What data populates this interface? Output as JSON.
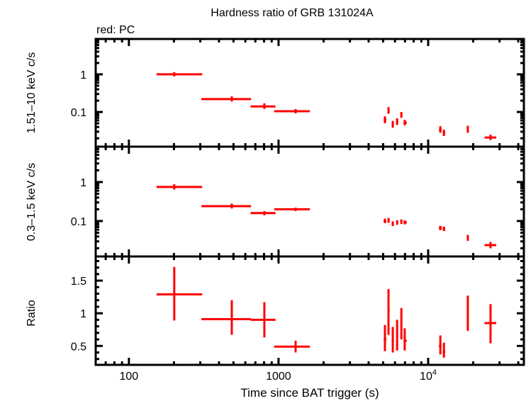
{
  "chart_data": {
    "type": "scatter",
    "title": "Hardness ratio of GRB 131024A",
    "legend_note": "red: PC",
    "xlabel": "Time since BAT trigger (s)",
    "xscale": "log",
    "xlim": [
      60,
      43600
    ],
    "xticks": [
      {
        "value": 100,
        "label": "100"
      },
      {
        "value": 1000,
        "label": "1000"
      },
      {
        "value": 10000,
        "label": "10",
        "sup": "4"
      }
    ],
    "series_color": "#ff0000",
    "series_name": "PC",
    "x": [
      201,
      487,
      804,
      1300,
      5140,
      5430,
      5800,
      6200,
      6620,
      6970,
      12060,
      12740,
      18400,
      26100
    ],
    "x_lo": [
      153,
      305,
      650,
      935,
      5040,
      5340,
      5700,
      6100,
      6520,
      6850,
      11800,
      12500,
      18200,
      23800
    ],
    "x_hi": [
      309,
      655,
      955,
      1620,
      5250,
      5530,
      5900,
      6300,
      6720,
      7200,
      12300,
      13000,
      18600,
      28500
    ],
    "panels": [
      {
        "name": "hard",
        "ylabel": "1.51–10 keV c/s",
        "yscale": "log",
        "ylim": [
          0.012,
          8.7
        ],
        "yticks": [
          {
            "value": 1,
            "label": "1"
          },
          {
            "value": 0.1,
            "label": "0.1"
          }
        ],
        "y": [
          1.0,
          0.22,
          0.14,
          0.105,
          0.062,
          0.109,
          0.046,
          0.055,
          0.084,
          0.052,
          0.034,
          0.028,
          0.035,
          0.021
        ],
        "y_lo": [
          0.88,
          0.19,
          0.12,
          0.092,
          0.05,
          0.09,
          0.038,
          0.045,
          0.07,
          0.044,
          0.028,
          0.023,
          0.028,
          0.018
        ],
        "y_hi": [
          1.14,
          0.26,
          0.17,
          0.12,
          0.077,
          0.135,
          0.058,
          0.068,
          0.1,
          0.062,
          0.042,
          0.034,
          0.043,
          0.025
        ]
      },
      {
        "name": "soft",
        "ylabel": "0.3–1.5 keV c/s",
        "yscale": "log",
        "ylim": [
          0.0123,
          8.1
        ],
        "yticks": [
          {
            "value": 1,
            "label": "1"
          },
          {
            "value": 0.1,
            "label": "0.1"
          }
        ],
        "y": [
          0.75,
          0.24,
          0.16,
          0.2,
          0.1,
          0.104,
          0.085,
          0.092,
          0.096,
          0.092,
          0.066,
          0.063,
          0.037,
          0.024
        ],
        "y_lo": [
          0.64,
          0.21,
          0.14,
          0.18,
          0.088,
          0.09,
          0.074,
          0.08,
          0.084,
          0.082,
          0.058,
          0.055,
          0.031,
          0.02
        ],
        "y_hi": [
          0.88,
          0.28,
          0.18,
          0.22,
          0.115,
          0.12,
          0.098,
          0.105,
          0.11,
          0.104,
          0.075,
          0.072,
          0.044,
          0.029
        ]
      },
      {
        "name": "ratio",
        "ylabel": "Ratio",
        "yscale": "linear",
        "ylim": [
          0.21,
          1.87
        ],
        "yticks": [
          {
            "value": 1.5,
            "label": "1.5"
          },
          {
            "value": 1,
            "label": "1"
          },
          {
            "value": 0.5,
            "label": "0.5"
          }
        ],
        "y": [
          1.29,
          0.91,
          0.9,
          0.49,
          0.6,
          1.04,
          0.58,
          0.65,
          0.85,
          0.58,
          0.5,
          0.41,
          0.97,
          0.85
        ],
        "y_lo": [
          0.89,
          0.67,
          0.63,
          0.4,
          0.42,
          0.67,
          0.4,
          0.43,
          0.6,
          0.43,
          0.37,
          0.32,
          0.73,
          0.54
        ],
        "y_hi": [
          1.71,
          1.2,
          1.17,
          0.58,
          0.82,
          1.37,
          0.79,
          0.9,
          1.08,
          0.77,
          0.66,
          0.55,
          1.27,
          1.14
        ]
      }
    ]
  }
}
